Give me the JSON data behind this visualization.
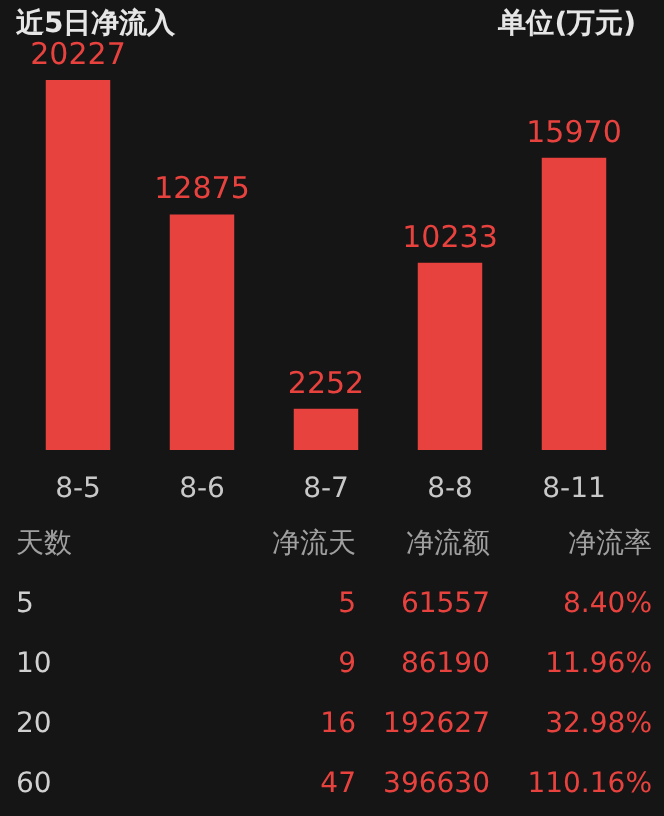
{
  "chart_data": {
    "type": "bar",
    "title": "近5日净流入",
    "subtitle": "单位(万元)",
    "categories": [
      "8-5",
      "8-6",
      "8-7",
      "8-8",
      "8-11"
    ],
    "values": [
      20227,
      12875,
      2252,
      10233,
      15970
    ],
    "color": "#e8423f",
    "data_labels": true,
    "grid": false,
    "annotations": [
      "天数",
      "净流天",
      "净流额",
      "净流率",
      "5",
      "5",
      "61557",
      "8.40%",
      "10",
      "9",
      "86190",
      "11.96%",
      "20",
      "16",
      "192627",
      "32.98%",
      "60",
      "47",
      "396630",
      "110.16%"
    ]
  }
}
